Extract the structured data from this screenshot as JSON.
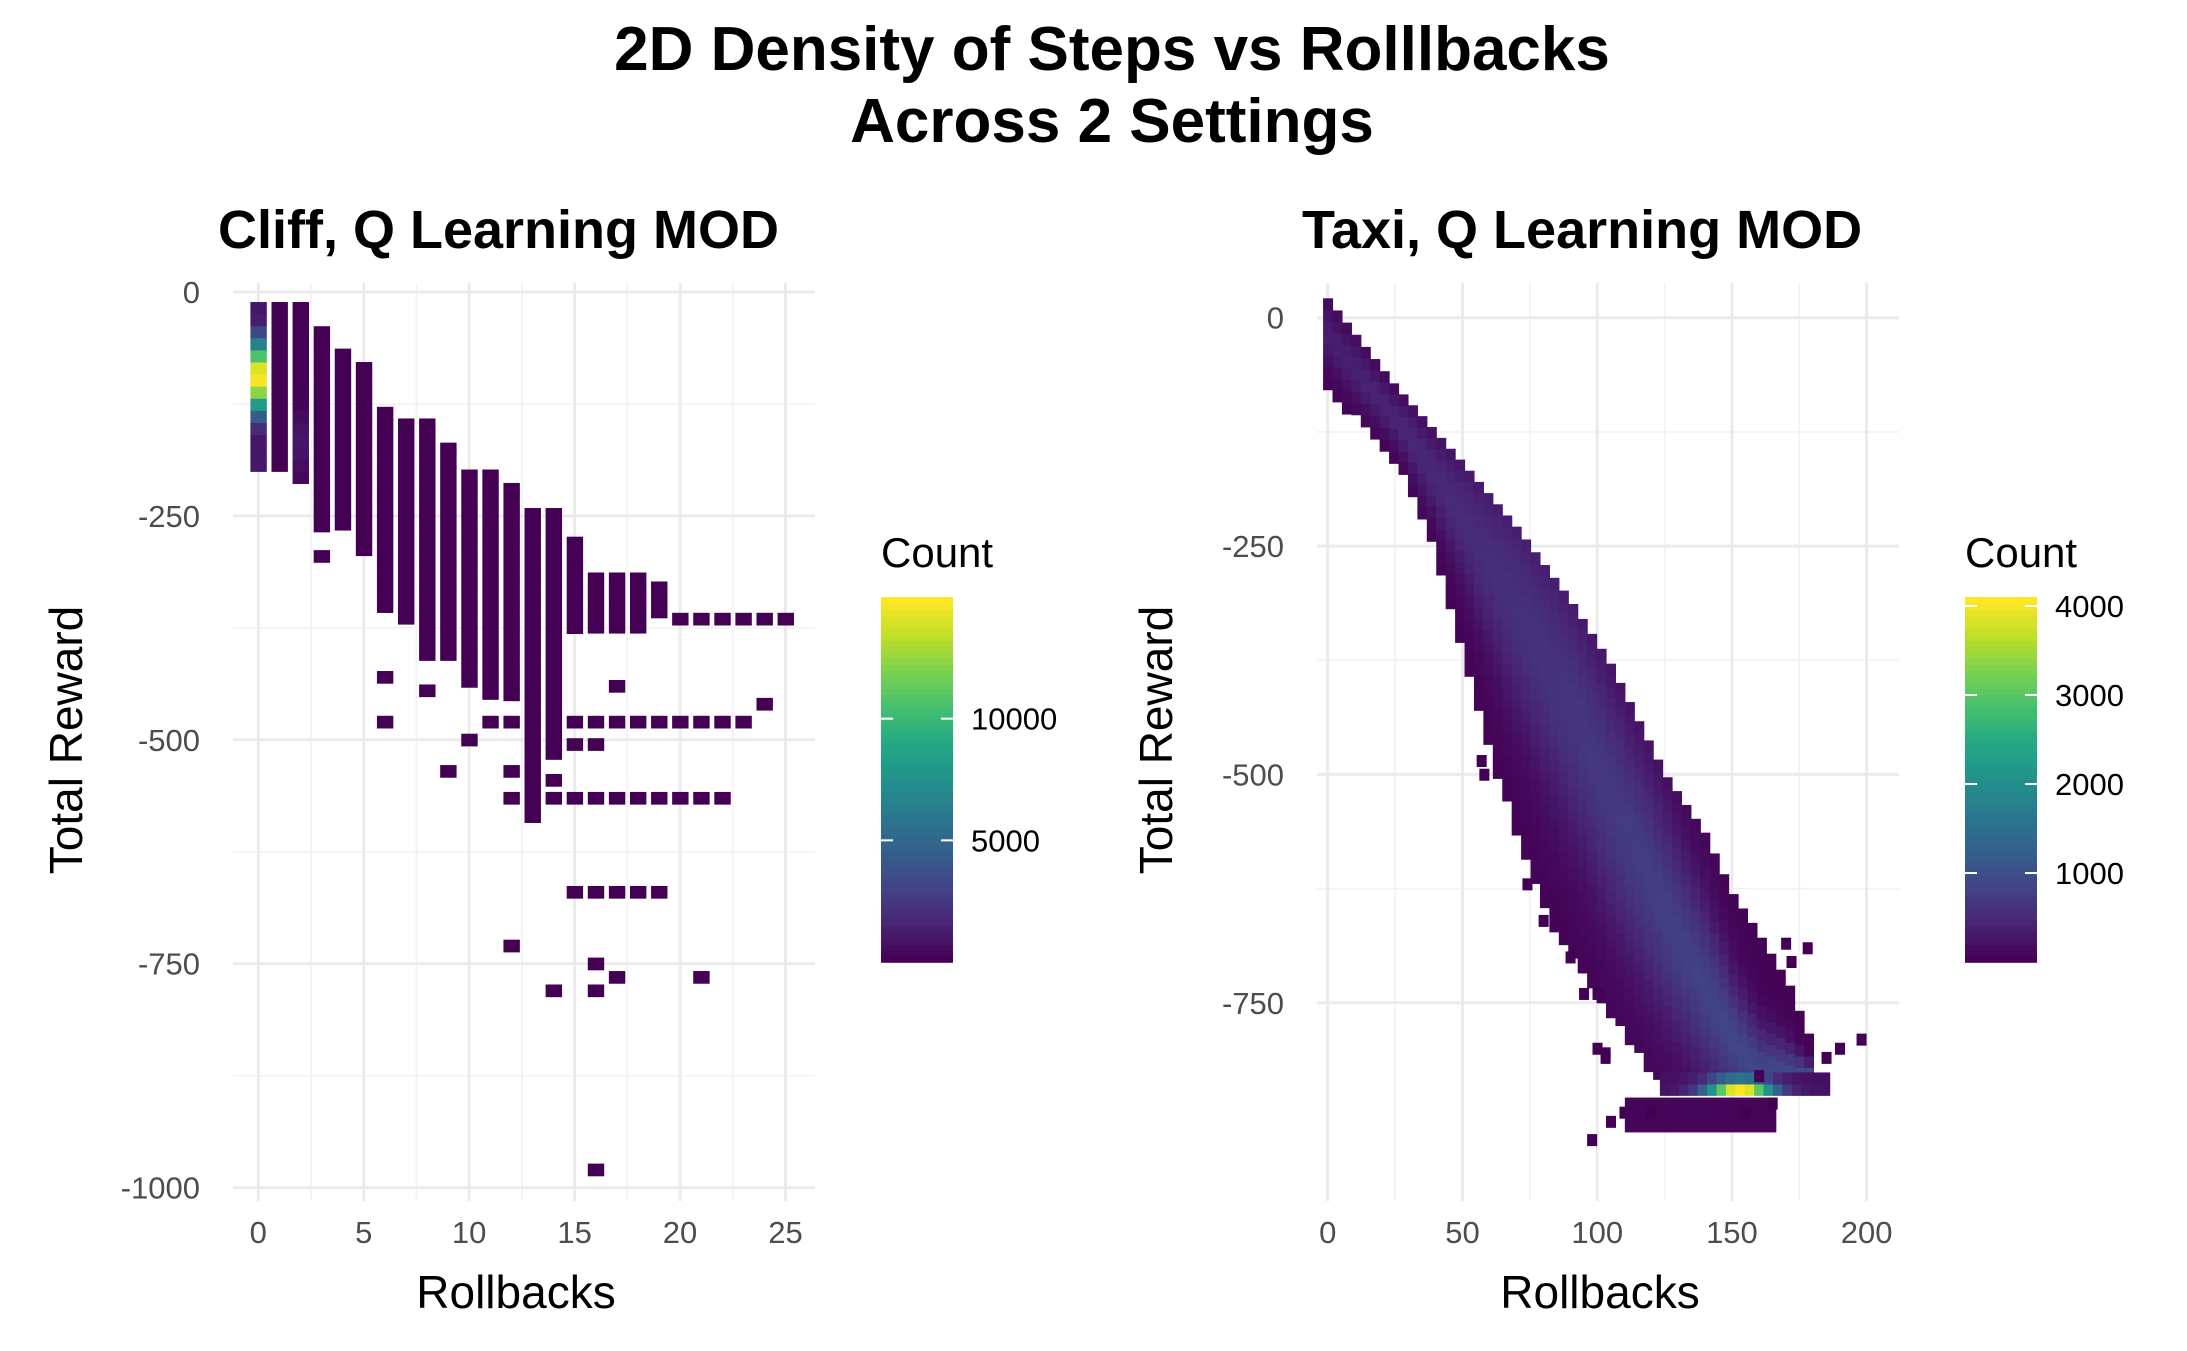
{
  "figure": {
    "title_line1": "2D Density of Steps vs Rolllbacks",
    "title_line2": "Across 2 Settings"
  },
  "colormap": "viridis",
  "chart_data": [
    {
      "type": "heatmap",
      "title": "Cliff,  Q Learning MOD",
      "xlabel": "Rollbacks",
      "ylabel": "Total Reward",
      "xlim": [
        -1.2,
        26.4
      ],
      "ylim": [
        -1015,
        10
      ],
      "x_ticks": [
        0,
        5,
        10,
        15,
        20,
        25
      ],
      "y_ticks": [
        0,
        -250,
        -500,
        -750,
        -1000
      ],
      "x_tick_labels": [
        "0",
        "5",
        "10",
        "15",
        "20",
        "25"
      ],
      "y_tick_labels": [
        "0",
        "-250",
        "-500",
        "-750",
        "-1000"
      ],
      "grid": true,
      "bin_width_x": 1,
      "bin_height_y": 13.5,
      "legend": {
        "title": "Count",
        "placement": "right",
        "range": [
          1,
          15000
        ],
        "ticks": [
          5000,
          10000
        ],
        "tick_labels": [
          "5000",
          "10000"
        ]
      },
      "columns": [
        {
          "x": 0,
          "y_min": -205,
          "y_max": -18,
          "peak": 15000,
          "peak_y": -95,
          "spread": 40
        },
        {
          "x": 1,
          "y_min": -195,
          "y_max": -18,
          "peak": 60
        },
        {
          "x": 2,
          "y_min": -220,
          "y_max": -18,
          "peak": 900,
          "peak_y": -170,
          "spread": 35
        },
        {
          "x": 3,
          "y_min": -265,
          "y_max": -45,
          "peak": 50
        },
        {
          "x": 4,
          "y_min": -265,
          "y_max": -70,
          "peak": 40
        },
        {
          "x": 5,
          "y_min": -300,
          "y_max": -85,
          "peak": 30
        },
        {
          "x": 6,
          "y_min": -360,
          "y_max": -135,
          "peak": 30
        },
        {
          "x": 7,
          "y_min": -375,
          "y_max": -148,
          "peak": 20
        },
        {
          "x": 8,
          "y_min": -415,
          "y_max": -148,
          "peak": 20
        },
        {
          "x": 9,
          "y_min": -415,
          "y_max": -175,
          "peak": 20
        },
        {
          "x": 10,
          "y_min": -445,
          "y_max": -205,
          "peak": 20
        },
        {
          "x": 11,
          "y_min": -455,
          "y_max": -205,
          "peak": 20
        },
        {
          "x": 12,
          "y_min": -455,
          "y_max": -220,
          "peak": 20
        },
        {
          "x": 13,
          "y_min": -595,
          "y_max": -248,
          "peak": 20
        },
        {
          "x": 14,
          "y_min": -505,
          "y_max": -248,
          "peak": 20
        },
        {
          "x": 15,
          "y_min": -385,
          "y_max": -280,
          "peak": 10
        },
        {
          "x": 16,
          "y_min": -385,
          "y_max": -320,
          "peak": 5
        },
        {
          "x": 17,
          "y_min": -385,
          "y_max": -320,
          "peak": 5
        },
        {
          "x": 18,
          "y_min": -385,
          "y_max": -320,
          "peak": 5
        },
        {
          "x": 19,
          "y_min": -360,
          "y_max": -330,
          "peak": 5
        }
      ],
      "points": [
        [
          3,
          -295
        ],
        [
          6,
          -430
        ],
        [
          6,
          -480
        ],
        [
          8,
          -445
        ],
        [
          9,
          -535
        ],
        [
          10,
          -500
        ],
        [
          11,
          -480
        ],
        [
          12,
          -480
        ],
        [
          12,
          -535
        ],
        [
          12,
          -565
        ],
        [
          12,
          -730
        ],
        [
          14,
          -515
        ],
        [
          14,
          -545
        ],
        [
          14,
          -565
        ],
        [
          14,
          -780
        ],
        [
          15,
          -480
        ],
        [
          15,
          -505
        ],
        [
          15,
          -565
        ],
        [
          15,
          -670
        ],
        [
          16,
          -480
        ],
        [
          16,
          -505
        ],
        [
          16,
          -565
        ],
        [
          16,
          -670
        ],
        [
          16,
          -750
        ],
        [
          16,
          -780
        ],
        [
          16,
          -980
        ],
        [
          17,
          -440
        ],
        [
          17,
          -480
        ],
        [
          17,
          -565
        ],
        [
          17,
          -670
        ],
        [
          17,
          -765
        ],
        [
          18,
          -480
        ],
        [
          18,
          -565
        ],
        [
          18,
          -670
        ],
        [
          19,
          -480
        ],
        [
          19,
          -565
        ],
        [
          19,
          -670
        ],
        [
          20,
          -365
        ],
        [
          20,
          -480
        ],
        [
          20,
          -565
        ],
        [
          21,
          -365
        ],
        [
          21,
          -480
        ],
        [
          21,
          -565
        ],
        [
          21,
          -765
        ],
        [
          22,
          -365
        ],
        [
          22,
          -480
        ],
        [
          22,
          -565
        ],
        [
          23,
          -365
        ],
        [
          23,
          -480
        ],
        [
          24,
          -365
        ],
        [
          24,
          -460
        ],
        [
          25,
          -365
        ]
      ]
    },
    {
      "type": "heatmap",
      "title": "Taxi, Q Learning MOD",
      "xlabel": "Rollbacks",
      "ylabel": "Total Reward",
      "xlim": [
        -4,
        212
      ],
      "ylim": [
        -967,
        38
      ],
      "x_ticks": [
        0,
        50,
        100,
        150,
        200
      ],
      "y_ticks": [
        0,
        -250,
        -500,
        -750
      ],
      "x_tick_labels": [
        "0",
        "50",
        "100",
        "150",
        "200"
      ],
      "y_tick_labels": [
        "0",
        "-250",
        "-500",
        "-750"
      ],
      "grid": true,
      "bin_width_x": 3.5,
      "bin_height_y": 12.5,
      "legend": {
        "title": "Count",
        "placement": "right",
        "range": [
          1,
          4100
        ],
        "ticks": [
          1000,
          2000,
          3000,
          4000
        ],
        "tick_labels": [
          "1000",
          "2000",
          "3000",
          "4000"
        ]
      },
      "band": {
        "upper_edge": [
          [
            0,
            15
          ],
          [
            25,
            -80
          ],
          [
            50,
            -165
          ],
          [
            70,
            -235
          ],
          [
            90,
            -315
          ],
          [
            105,
            -385
          ],
          [
            115,
            -445
          ],
          [
            125,
            -505
          ],
          [
            140,
            -570
          ],
          [
            150,
            -635
          ],
          [
            160,
            -680
          ],
          [
            172,
            -740
          ],
          [
            178,
            -790
          ]
        ],
        "lower_edge": [
          [
            0,
            -75
          ],
          [
            10,
            -110
          ],
          [
            25,
            -155
          ],
          [
            40,
            -260
          ],
          [
            50,
            -360
          ],
          [
            60,
            -470
          ],
          [
            70,
            -570
          ],
          [
            80,
            -645
          ],
          [
            90,
            -700
          ],
          [
            100,
            -745
          ],
          [
            110,
            -785
          ],
          [
            120,
            -830
          ],
          [
            145,
            -840
          ],
          [
            165,
            -830
          ]
        ],
        "ridge": [
          [
            0,
            -20
          ],
          [
            30,
            -130
          ],
          [
            50,
            -220
          ],
          [
            70,
            -320
          ],
          [
            90,
            -430
          ],
          [
            110,
            -560
          ],
          [
            130,
            -680
          ],
          [
            150,
            -790
          ],
          [
            160,
            -830
          ]
        ],
        "ridge_peak": 900
      },
      "hotspot": {
        "x_min": 125,
        "x_max": 185,
        "y": -845,
        "peak": 4000,
        "center_x": 153
      },
      "bottom_cluster": {
        "x_min": 112,
        "x_max": 165,
        "y_min": -885,
        "y_max": -860
      },
      "points": [
        [
          57,
          -485
        ],
        [
          58,
          -500
        ],
        [
          74,
          -620
        ],
        [
          80,
          -660
        ],
        [
          90,
          -700
        ],
        [
          95,
          -740
        ],
        [
          100,
          -740
        ],
        [
          100,
          -800
        ],
        [
          103,
          -805
        ],
        [
          103,
          -810
        ],
        [
          98,
          -900
        ],
        [
          105,
          -880
        ],
        [
          110,
          -870
        ],
        [
          120,
          -870
        ],
        [
          155,
          -870
        ],
        [
          160,
          -830
        ],
        [
          165,
          -860
        ],
        [
          170,
          -685
        ],
        [
          172,
          -705
        ],
        [
          178,
          -690
        ],
        [
          185,
          -810
        ],
        [
          190,
          -800
        ],
        [
          198,
          -790
        ]
      ]
    }
  ]
}
